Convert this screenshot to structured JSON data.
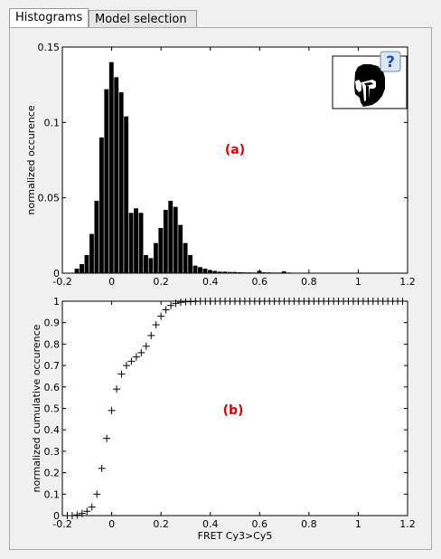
{
  "tabs": [
    {
      "label": "Histograms",
      "active": true
    },
    {
      "label": "Model selection",
      "active": false
    }
  ],
  "help_label": "?",
  "chart_data": [
    {
      "type": "bar",
      "title": "",
      "annotation": "(a)",
      "annotation_color": "#e00000",
      "xlabel": "",
      "ylabel": "normalized occurence",
      "xlim": [
        -0.2,
        1.2
      ],
      "ylim": [
        0,
        0.15
      ],
      "xticks": [
        -0.2,
        0,
        0.2,
        0.4,
        0.6,
        0.8,
        1,
        1.2
      ],
      "xtick_labels": [
        "-0.2",
        "0",
        "0.2",
        "0.4",
        "0.6",
        "0.8",
        "1",
        "1.2"
      ],
      "yticks": [
        0,
        0.05,
        0.1,
        0.15
      ],
      "ytick_labels": [
        "0",
        "0.05",
        "0.1",
        "0.15"
      ],
      "bin_width": 0.02,
      "bin_centers": [
        -0.14,
        -0.12,
        -0.1,
        -0.08,
        -0.06,
        -0.04,
        -0.02,
        0,
        0.02,
        0.04,
        0.06,
        0.08,
        0.1,
        0.12,
        0.14,
        0.16,
        0.18,
        0.2,
        0.22,
        0.24,
        0.26,
        0.28,
        0.3,
        0.32,
        0.34,
        0.36,
        0.38,
        0.4,
        0.42,
        0.44,
        0.46,
        0.48,
        0.5,
        0.52,
        0.54,
        0.56,
        0.58,
        0.6,
        0.62,
        0.64,
        0.66,
        0.68,
        0.7,
        0.72,
        0.74,
        0.76,
        0.78,
        0.8,
        0.82,
        0.84,
        0.86,
        0.88,
        0.9
      ],
      "values": [
        0.003,
        0.006,
        0.012,
        0.026,
        0.048,
        0.09,
        0.122,
        0.14,
        0.13,
        0.12,
        0.104,
        0.04,
        0.043,
        0.04,
        0.012,
        0.01,
        0.02,
        0.03,
        0.042,
        0.048,
        0.044,
        0.032,
        0.02,
        0.012,
        0.005,
        0.004,
        0.003,
        0.002,
        0.0015,
        0.001,
        0.001,
        0.0008,
        0.0008,
        0.0006,
        0.0005,
        0.0005,
        0.0004,
        0.0015,
        0.0005,
        0.0005,
        0.0004,
        0.0004,
        0.0012,
        0.0004,
        0.0003,
        0.0003,
        0.0003,
        0.0003,
        0.0002,
        0.0002,
        0.0002,
        0.0002,
        0.0002
      ],
      "grid": false
    },
    {
      "type": "scatter",
      "marker": "+",
      "title": "",
      "annotation": "(b)",
      "annotation_color": "#e00000",
      "xlabel": "FRET Cy3>Cy5",
      "ylabel": "normalized cumulative occurence",
      "xlim": [
        -0.2,
        1.2
      ],
      "ylim": [
        0,
        1
      ],
      "xticks": [
        -0.2,
        0,
        0.2,
        0.4,
        0.6,
        0.8,
        1,
        1.2
      ],
      "xtick_labels": [
        "-0.2",
        "0",
        "0.2",
        "0.4",
        "0.6",
        "0.8",
        "1",
        "1.2"
      ],
      "yticks": [
        0,
        0.1,
        0.2,
        0.3,
        0.4,
        0.5,
        0.6,
        0.7,
        0.8,
        0.9,
        1
      ],
      "ytick_labels": [
        "0",
        "0.1",
        "0.2",
        "0.3",
        "0.4",
        "0.5",
        "0.6",
        "0.7",
        "0.8",
        "0.9",
        "1"
      ],
      "x": [
        -0.18,
        -0.16,
        -0.14,
        -0.12,
        -0.1,
        -0.08,
        -0.06,
        -0.04,
        -0.02,
        0,
        0.02,
        0.04,
        0.06,
        0.08,
        0.1,
        0.12,
        0.14,
        0.16,
        0.18,
        0.2,
        0.22,
        0.24,
        0.26,
        0.28,
        0.3,
        0.32,
        0.34,
        0.36,
        0.38,
        0.4,
        0.42,
        0.44,
        0.46,
        0.48,
        0.5,
        0.52,
        0.54,
        0.56,
        0.58,
        0.6,
        0.62,
        0.64,
        0.66,
        0.68,
        0.7,
        0.72,
        0.74,
        0.76,
        0.78,
        0.8,
        0.82,
        0.84,
        0.86,
        0.88,
        0.9,
        0.92,
        0.94,
        0.96,
        0.98,
        1,
        1.02,
        1.04,
        1.06,
        1.08,
        1.1,
        1.12,
        1.14,
        1.16,
        1.18
      ],
      "y": [
        0.0,
        0.0,
        0.003,
        0.01,
        0.02,
        0.04,
        0.1,
        0.22,
        0.36,
        0.49,
        0.59,
        0.66,
        0.7,
        0.72,
        0.74,
        0.76,
        0.79,
        0.84,
        0.89,
        0.93,
        0.96,
        0.98,
        0.99,
        0.995,
        0.997,
        0.998,
        0.999,
        1,
        1,
        1,
        1,
        1,
        1,
        1,
        1,
        1,
        1,
        1,
        1,
        1,
        1,
        1,
        1,
        1,
        1,
        1,
        1,
        1,
        1,
        1,
        1,
        1,
        1,
        1,
        1,
        1,
        1,
        1,
        1,
        1,
        1,
        1,
        1,
        1,
        1,
        1,
        1,
        1,
        1
      ],
      "grid": false
    }
  ]
}
